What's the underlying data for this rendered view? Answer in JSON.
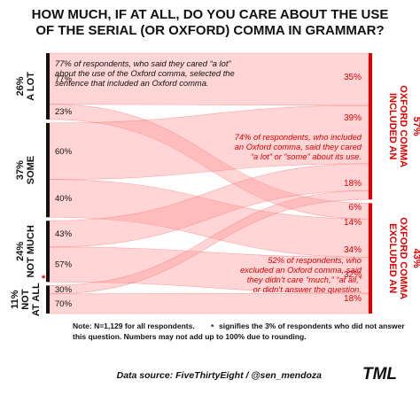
{
  "title_lines": [
    "HOW MUCH, IF AT ALL, DO YOU CARE ABOUT THE USE",
    "OF THE SERIAL (OR OXFORD) COMMA IN GRAMMAR?"
  ],
  "colors": {
    "flow": "#ff9b9b",
    "left_bar": "#111111",
    "right_bar": "#e00000",
    "accent_red": "#e00000",
    "text": "#111111"
  },
  "chart_data": {
    "type": "sankey",
    "left_groups": [
      {
        "label": "A LOT",
        "share": "26%",
        "weight": 26
      },
      {
        "label": "SOME",
        "share": "37%",
        "weight": 37
      },
      {
        "label": "NOT MUCH",
        "share": "24%",
        "weight": 24
      },
      {
        "label": "NOT AT ALL",
        "share": "11%",
        "weight": 11
      }
    ],
    "right_groups": [
      {
        "label_lines": [
          "INCLUDED AN",
          "OXFORD COMMA"
        ],
        "share": "57%",
        "weight": 57
      },
      {
        "label_lines": [
          "EXCLUDED AN",
          "OXFORD COMMA"
        ],
        "share": "43%",
        "weight": 43
      }
    ],
    "flows": [
      {
        "from": "A LOT",
        "to": "INCLUDED AN OXFORD COMMA",
        "left_pct": "77%",
        "right_pct": "35%"
      },
      {
        "from": "A LOT",
        "to": "EXCLUDED AN OXFORD COMMA",
        "left_pct": "23%",
        "right_pct": "14%"
      },
      {
        "from": "SOME",
        "to": "INCLUDED AN OXFORD COMMA",
        "left_pct": "60%",
        "right_pct": "39%"
      },
      {
        "from": "SOME",
        "to": "EXCLUDED AN OXFORD COMMA",
        "left_pct": "40%",
        "right_pct": "34%"
      },
      {
        "from": "NOT MUCH",
        "to": "INCLUDED AN OXFORD COMMA",
        "left_pct": "43%",
        "right_pct": "18%"
      },
      {
        "from": "NOT MUCH",
        "to": "EXCLUDED AN OXFORD COMMA",
        "left_pct": "57%",
        "right_pct": "32%"
      },
      {
        "from": "NOT AT ALL",
        "to": "INCLUDED AN OXFORD COMMA",
        "left_pct": "30%",
        "right_pct": "6%"
      },
      {
        "from": "NOT AT ALL",
        "to": "EXCLUDED AN OXFORD COMMA",
        "left_pct": "70%",
        "right_pct": "18%"
      }
    ],
    "right_pct_labels": [
      "35%",
      "39%",
      "18%",
      "6%",
      "14%",
      "34%",
      "32%",
      "18%"
    ],
    "annotations": [
      {
        "id": "a-lot-note",
        "lines": [
          "77% of respondents, who said they cared “a lot”",
          "about the use of the Oxford comma, selected the",
          "sentence that included an Oxford comma."
        ]
      },
      {
        "id": "some-note",
        "lines": [
          "74% of respondents, who included",
          "an Oxford comma, said they cared",
          "“a lot” or “some” about its use."
        ]
      },
      {
        "id": "excluded-note",
        "lines": [
          "52% of respondents, who",
          "excluded an Oxford comma, said",
          "they didn’t care “much,” “at all,”",
          "or didn’t answer the question."
        ]
      }
    ],
    "footnote_lines": [
      "Note: N=1,129 for all respondents.",
      "signifies the 3% of respondents who did not answer",
      "this question. Numbers may not add up to 100% due to rounding."
    ],
    "source": "Data source: FiveThirtyEight / @sen_mendoza",
    "logo": "TML"
  }
}
